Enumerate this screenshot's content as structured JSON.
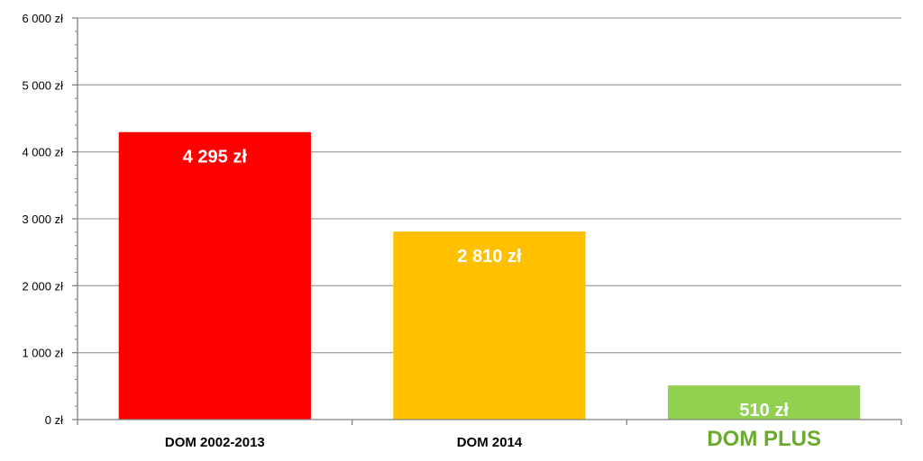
{
  "chart_data": {
    "type": "bar",
    "title": "",
    "xlabel": "",
    "ylabel": "",
    "ylim": [
      0,
      6000
    ],
    "yticks": [
      0,
      1000,
      2000,
      3000,
      4000,
      5000,
      6000
    ],
    "ytick_labels": [
      "0 zł",
      "1 000 zł",
      "2 000 zł",
      "3 000 zł",
      "4 000 zł",
      "5 000 zł",
      "6 000 zł"
    ],
    "grid": true,
    "categories": [
      "DOM 2002-2013",
      "DOM 2014",
      "DOM PLUS"
    ],
    "values": [
      4295,
      2810,
      510
    ],
    "data_labels": [
      "4 295 zł",
      "2 810 zł",
      "510 zł"
    ],
    "bar_colors": [
      "#ff0000",
      "#ffc000",
      "#92d050"
    ],
    "category_label_colors": [
      "#000000",
      "#000000",
      "#6aaa2e"
    ],
    "highlighted_category": "DOM PLUS",
    "gridline_color": "#a6a6a6",
    "axis_color": "#808080"
  }
}
